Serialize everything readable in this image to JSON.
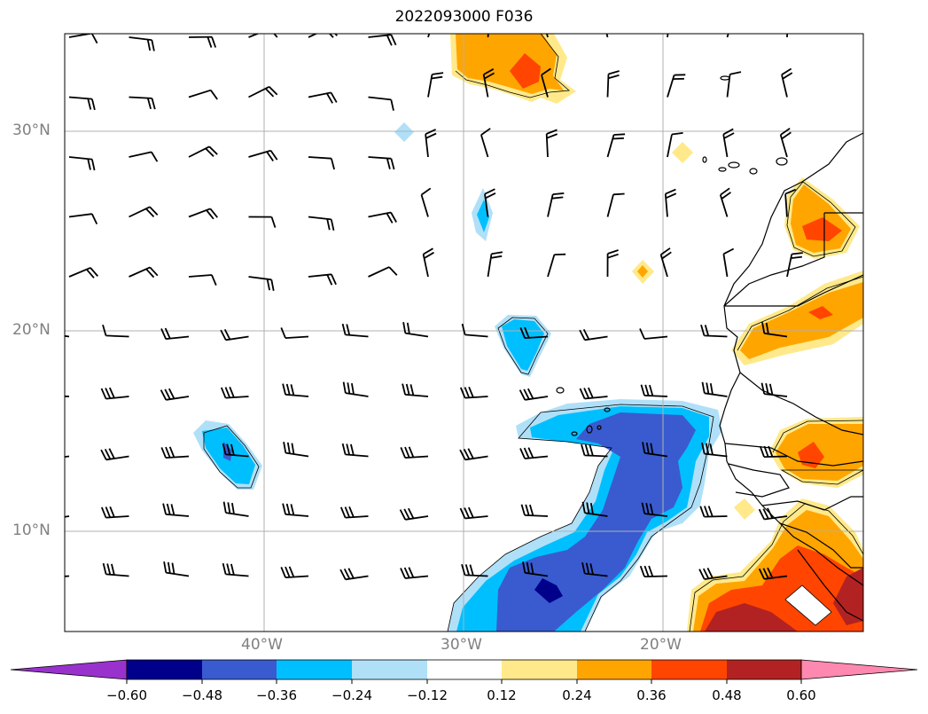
{
  "title": "2022093000 F036",
  "axes": {
    "lat_labels": [
      "30°N",
      "20°N",
      "10°N"
    ],
    "lon_labels": [
      "40°W",
      "30°W",
      "20°W"
    ],
    "lat_range": [
      5,
      35
    ],
    "lon_range": [
      -50,
      -10
    ],
    "grid": true
  },
  "colorbar": {
    "levels": [
      -0.72,
      -0.6,
      -0.48,
      -0.36,
      -0.24,
      -0.12,
      0.12,
      0.24,
      0.36,
      0.48,
      0.6,
      0.72
    ],
    "tick_labels": [
      "−0.60",
      "−0.48",
      "−0.36",
      "−0.24",
      "−0.12",
      "0.12",
      "0.24",
      "0.36",
      "0.48",
      "0.60"
    ],
    "colors": [
      "#9932cc",
      "#00008b",
      "#3a5bcf",
      "#00bfff",
      "#b0e0f8",
      "#ffffff",
      "#ffe98a",
      "#ffa500",
      "#ff4500",
      "#b22222",
      "#ff88b0"
    ],
    "extend": "both"
  },
  "colors": {
    "frame": "#000000",
    "grid": "#b0b0b0",
    "coast": "#000000",
    "axis_text": "#808080"
  },
  "layers": {
    "filled_contours": "field anomaly shading",
    "wind_barbs": true,
    "coastlines": true,
    "country_borders": true
  }
}
